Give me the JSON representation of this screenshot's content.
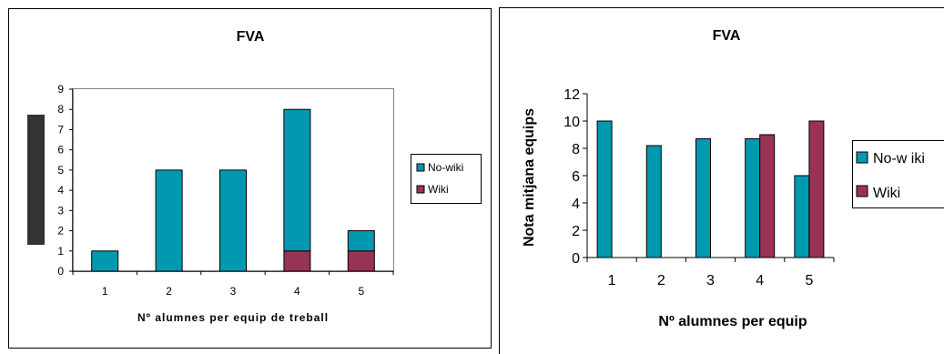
{
  "chart_data": [
    {
      "type": "bar",
      "stacked": true,
      "title": "FVA",
      "xlabel": "Nº alumnes per equip de treball",
      "ylabel": "",
      "categories": [
        "1",
        "2",
        "3",
        "4",
        "5"
      ],
      "series": [
        {
          "name": "Wiki",
          "color": "#993355",
          "values": [
            0,
            0,
            0,
            1,
            1
          ]
        },
        {
          "name": "No-wiki",
          "color": "#0099B0",
          "values": [
            1,
            5,
            5,
            7,
            1
          ]
        }
      ],
      "legend_order": [
        "No-wiki",
        "Wiki"
      ],
      "ylim": [
        0,
        9
      ],
      "yticks": [
        "0",
        "1",
        "2",
        "3",
        "4",
        "5",
        "6",
        "7",
        "8",
        "9"
      ],
      "legend": "right",
      "grid": false
    },
    {
      "type": "bar",
      "stacked": false,
      "title": "FVA",
      "xlabel": "Nº alumnes per equip",
      "ylabel": "Nota mitjana equips",
      "categories": [
        "1",
        "2",
        "3",
        "4",
        "5"
      ],
      "series": [
        {
          "name": "No-w iki",
          "color": "#0099B0",
          "values": [
            10,
            8.2,
            8.7,
            8.7,
            6
          ]
        },
        {
          "name": "Wiki",
          "color": "#993355",
          "values": [
            null,
            null,
            null,
            9,
            10
          ]
        }
      ],
      "ylim": [
        0,
        12
      ],
      "yticks": [
        "0",
        "2",
        "4",
        "6",
        "8",
        "10",
        "12"
      ],
      "legend": "right",
      "grid": false
    }
  ]
}
